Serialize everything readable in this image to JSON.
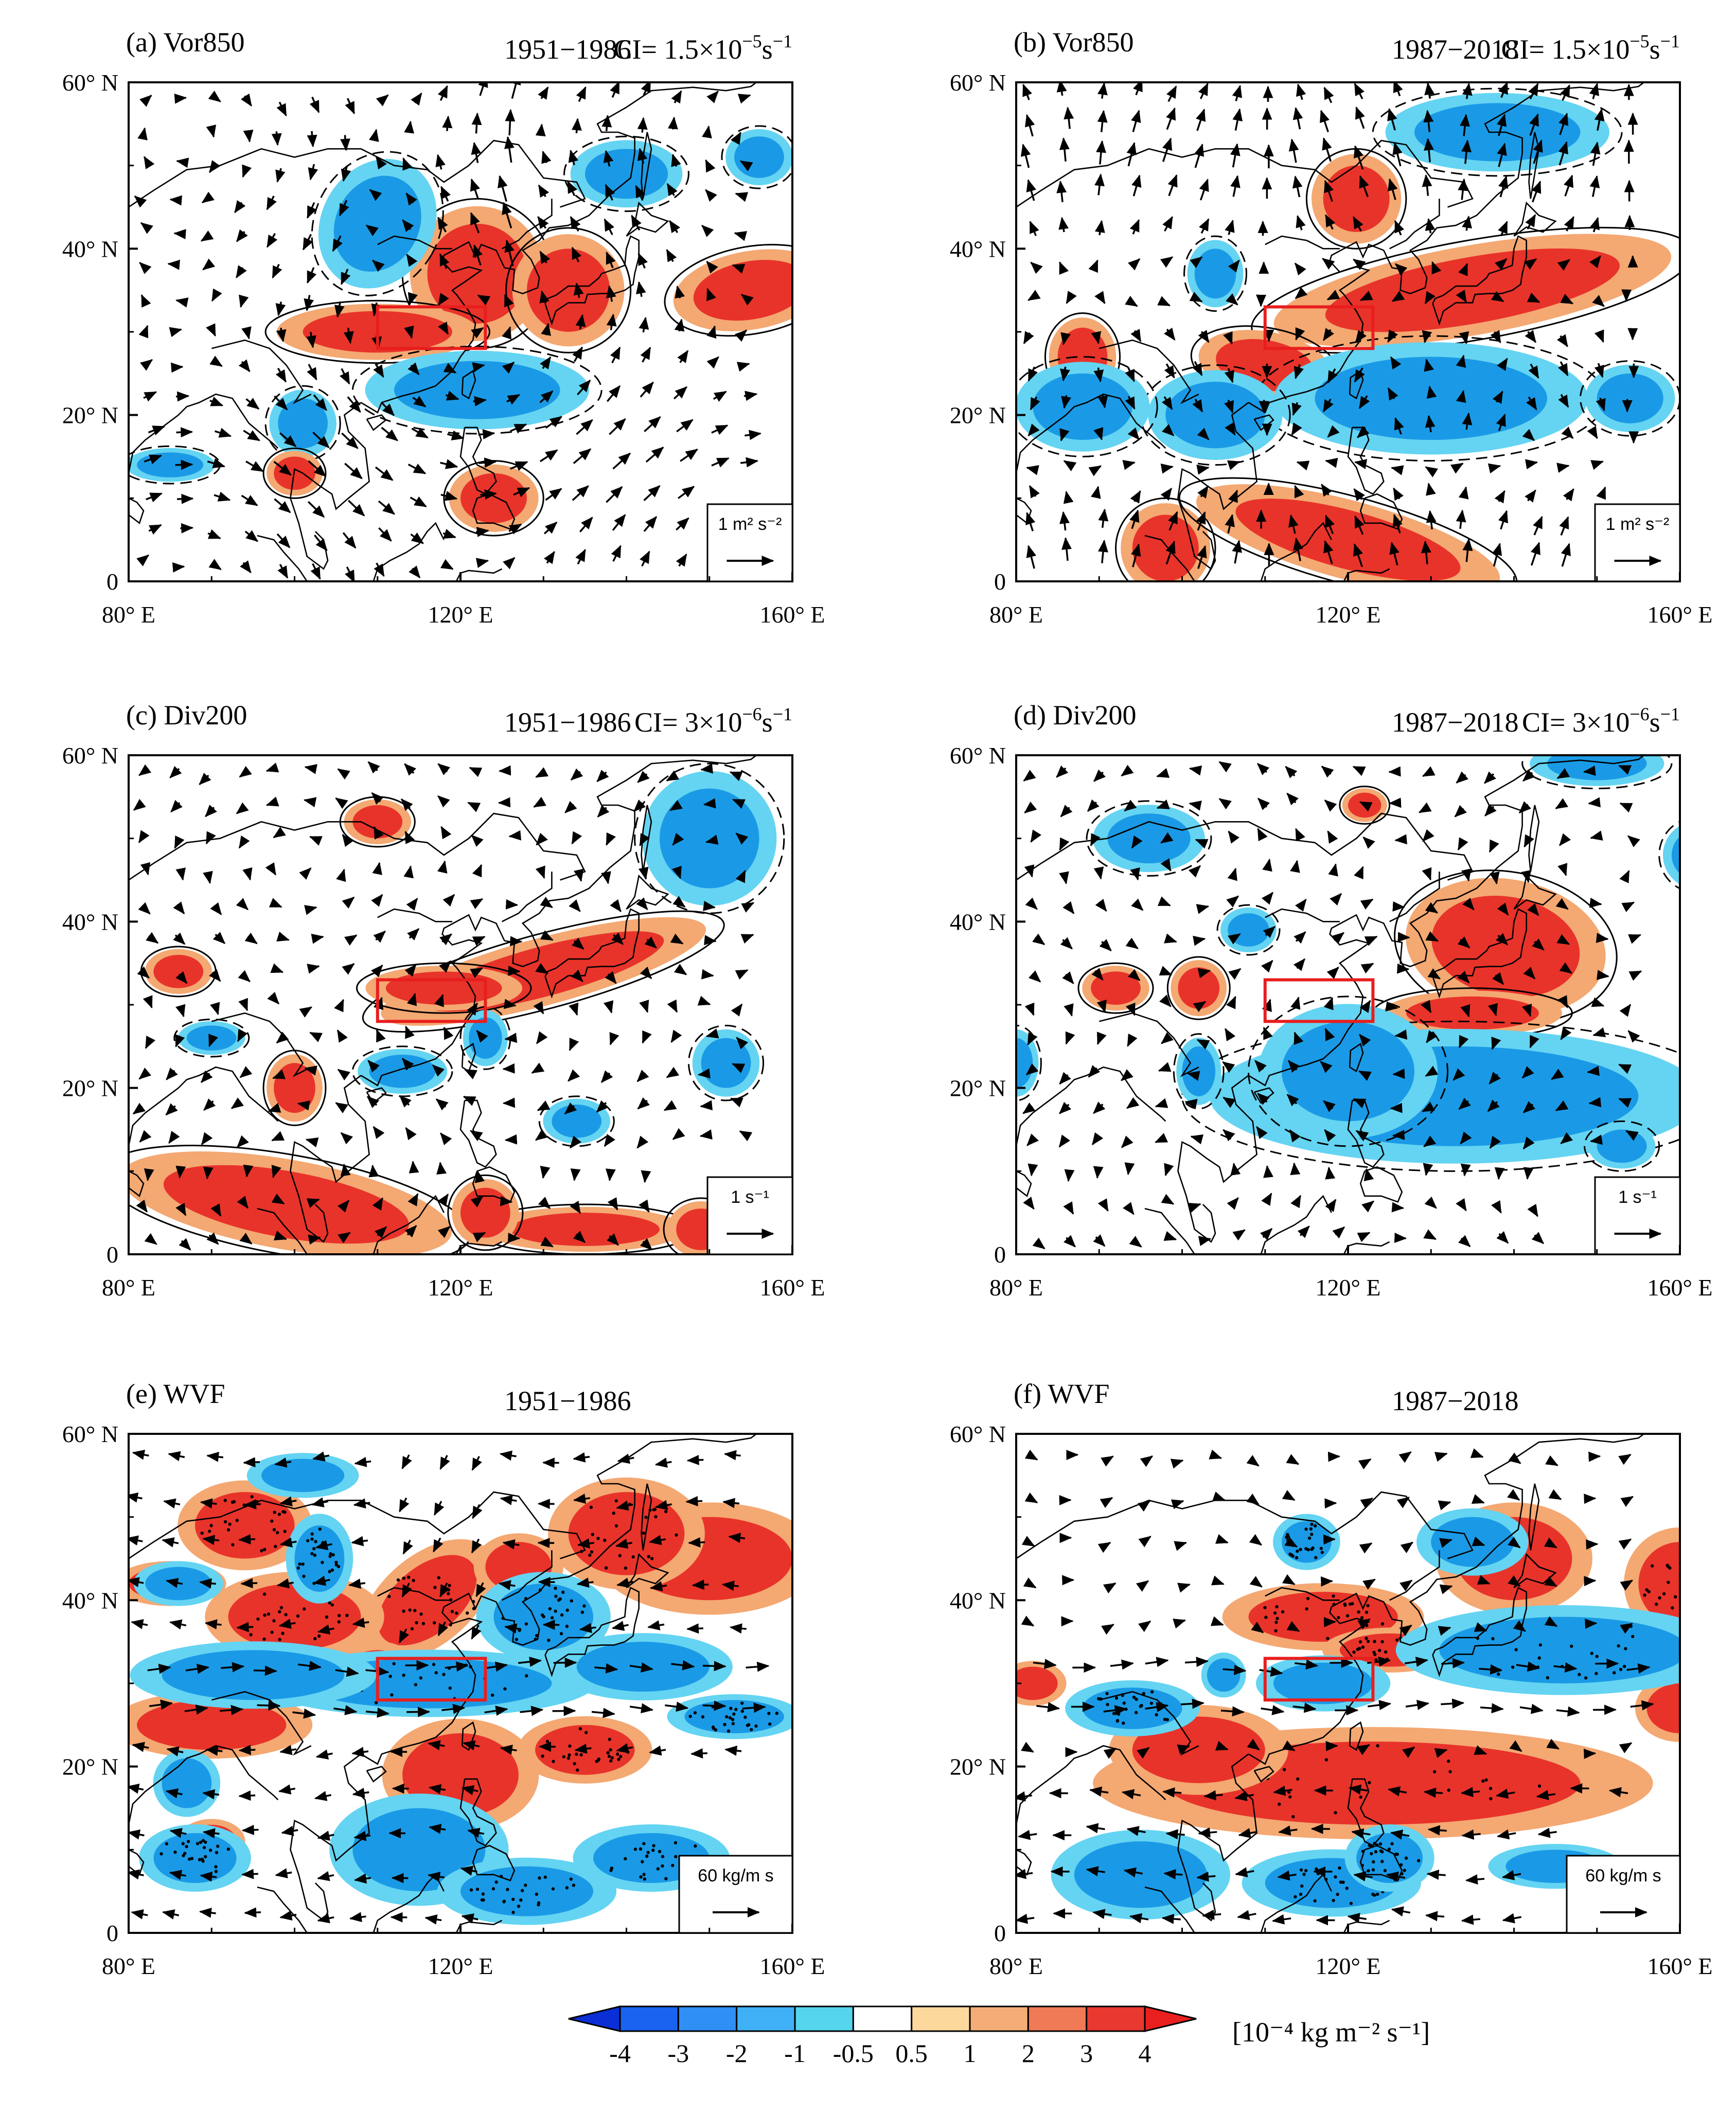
{
  "figure": {
    "axes": {
      "y_ticks": [
        "60° N",
        "40° N",
        "20° N",
        "0"
      ],
      "x_ticks": [
        "80° E",
        "120° E",
        "160° E"
      ],
      "lon_range": [
        80,
        160
      ],
      "lat_range": [
        0,
        60
      ]
    },
    "target_box": {
      "lon": [
        110,
        123
      ],
      "lat": [
        28,
        33
      ]
    },
    "panels": [
      {
        "id": "a",
        "label": "(a) Vor850",
        "period": "1951−1986",
        "ci_prefix": "CI= 1.5×10",
        "ci_exp": "−5",
        "ci_unit": "s",
        "ci_unit_exp": "−1",
        "ref_vector_label": "1 m² s⁻²"
      },
      {
        "id": "b",
        "label": "(b) Vor850",
        "period": "1987−2018",
        "ci_prefix": "CI= 1.5×10",
        "ci_exp": "−5",
        "ci_unit": "s",
        "ci_unit_exp": "−1",
        "ref_vector_label": "1 m² s⁻²"
      },
      {
        "id": "c",
        "label": "(c) Div200",
        "period": "1951−1986",
        "ci_prefix": "CI= 3×10",
        "ci_exp": "−6",
        "ci_unit": "s",
        "ci_unit_exp": "−1",
        "ref_vector_label": "1 s⁻¹"
      },
      {
        "id": "d",
        "label": "(d) Div200",
        "period": "1987−2018",
        "ci_prefix": "CI= 3×10",
        "ci_exp": "−6",
        "ci_unit": "s",
        "ci_unit_exp": "−1",
        "ref_vector_label": "1 s⁻¹"
      },
      {
        "id": "e",
        "label": "(e) WVF",
        "period": "1951−1986",
        "ci_prefix": "",
        "ci_exp": "",
        "ci_unit": "",
        "ci_unit_exp": "",
        "ref_vector_label": "60 kg/m s"
      },
      {
        "id": "f",
        "label": "(f) WVF",
        "period": "1987−2018",
        "ci_prefix": "",
        "ci_exp": "",
        "ci_unit": "",
        "ci_unit_exp": "",
        "ref_vector_label": "60 kg/m s"
      }
    ],
    "colorbar": {
      "tick_labels": [
        "-4",
        "-3",
        "-2",
        "-1",
        "-0.5",
        "0.5",
        "1",
        "2",
        "3",
        "4"
      ],
      "unit": "[10⁻⁴ kg m⁻² s⁻¹]",
      "colors": [
        "#0a2fd6",
        "#1a63f0",
        "#2f8ff5",
        "#3fb0f5",
        "#55d4ee",
        "#ffffff",
        "#fcd89c",
        "#f4ad76",
        "#f07a55",
        "#e8382f",
        "#ea1f1f"
      ]
    },
    "colors": {
      "positive": "#e8332a",
      "positive_light": "#f4a872",
      "negative": "#1a9ae6",
      "negative_light": "#64d4f2",
      "box": "#e81e1e",
      "land": "#000000"
    }
  }
}
